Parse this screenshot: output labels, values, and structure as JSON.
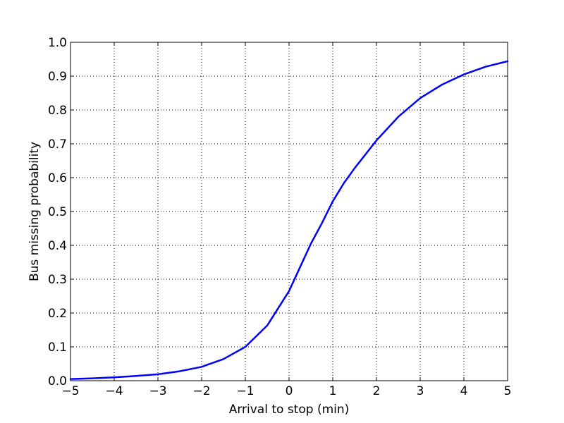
{
  "chart_data": {
    "type": "line",
    "xlabel": "Arrival to stop (min)",
    "ylabel": "Bus missing probability",
    "xlim": [
      -5,
      5
    ],
    "ylim": [
      0.0,
      1.0
    ],
    "x_ticks": [
      -5,
      -4,
      -3,
      -2,
      -1,
      0,
      1,
      2,
      3,
      4,
      5
    ],
    "x_tick_labels": [
      "−5",
      "−4",
      "−3",
      "−2",
      "−1",
      "0",
      "1",
      "2",
      "3",
      "4",
      "5"
    ],
    "y_ticks": [
      0.0,
      0.1,
      0.2,
      0.3,
      0.4,
      0.5,
      0.6,
      0.7,
      0.8,
      0.9,
      1.0
    ],
    "y_tick_labels": [
      "0.0",
      "0.1",
      "0.2",
      "0.3",
      "0.4",
      "0.5",
      "0.6",
      "0.7",
      "0.8",
      "0.9",
      "1.0"
    ],
    "grid": true,
    "legend": "none",
    "series": [
      {
        "color": "#0000ff",
        "x": [
          -5,
          -4.5,
          -4,
          -3.5,
          -3,
          -2.5,
          -2,
          -1.5,
          -1,
          -0.5,
          0,
          0.25,
          0.5,
          0.75,
          1,
          1.25,
          1.5,
          2,
          2.5,
          3,
          3.5,
          4,
          4.5,
          5
        ],
        "y": [
          0.005,
          0.007,
          0.01,
          0.014,
          0.019,
          0.028,
          0.041,
          0.064,
          0.1,
          0.163,
          0.265,
          0.335,
          0.405,
          0.465,
          0.53,
          0.583,
          0.628,
          0.71,
          0.78,
          0.835,
          0.875,
          0.905,
          0.928,
          0.944
        ]
      }
    ]
  }
}
